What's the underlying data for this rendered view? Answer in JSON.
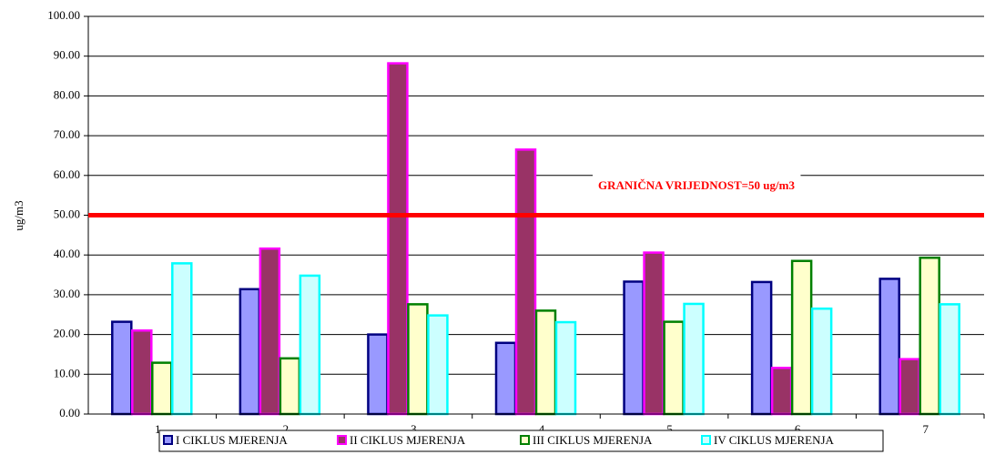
{
  "chart_data": {
    "type": "bar",
    "y_label": "ug/m3",
    "categories": [
      "1",
      "2",
      "3",
      "4",
      "5",
      "6",
      "7"
    ],
    "series": [
      {
        "name": "I CIKLUS MJERENJA",
        "color": "#9999ff",
        "edge_color": "#000080",
        "values": [
          23.2,
          31.4,
          20.0,
          17.9,
          33.3,
          33.2,
          34.0
        ]
      },
      {
        "name": "II CIKLUS MJERENJA",
        "color": "#993366",
        "edge_color": "#ff00ff",
        "values": [
          21.0,
          41.6,
          88.2,
          66.5,
          40.6,
          11.6,
          13.8
        ]
      },
      {
        "name": "III CIKLUS MJERENJA",
        "color": "#ffffcc",
        "edge_color": "#008000",
        "values": [
          12.9,
          14.0,
          27.6,
          26.0,
          23.2,
          38.5,
          39.3
        ]
      },
      {
        "name": "IV CIKLUS MJERENJA",
        "color": "#ccffff",
        "edge_color": "#00ffff",
        "values": [
          37.9,
          34.8,
          24.8,
          23.1,
          27.7,
          26.5,
          27.6
        ]
      }
    ],
    "reference_line": {
      "value": 50,
      "label": "GRANIČNA VRIJEDNOST=50 ug/m3",
      "color": "#ff0000"
    },
    "ylim": [
      0,
      100
    ],
    "yticks": [
      {
        "value": 0,
        "label": "0.00"
      },
      {
        "value": 10,
        "label": "10.00"
      },
      {
        "value": 20,
        "label": "20.00"
      },
      {
        "value": 30,
        "label": "30.00"
      },
      {
        "value": 40,
        "label": "40.00"
      },
      {
        "value": 50,
        "label": "50.00"
      },
      {
        "value": 60,
        "label": "60.00"
      },
      {
        "value": 70,
        "label": "70.00"
      },
      {
        "value": 80,
        "label": "80.00"
      },
      {
        "value": 90,
        "label": "90.00"
      },
      {
        "value": 100,
        "label": "100.00"
      }
    ],
    "grid": true,
    "legend": "bottom"
  }
}
